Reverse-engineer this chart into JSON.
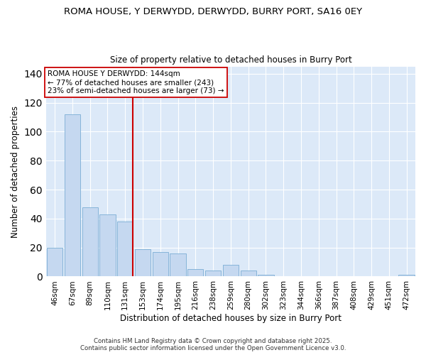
{
  "title_line1": "ROMA HOUSE, Y DERWYDD, DERWYDD, BURRY PORT, SA16 0EY",
  "title_line2": "Size of property relative to detached houses in Burry Port",
  "xlabel": "Distribution of detached houses by size in Burry Port",
  "ylabel": "Number of detached properties",
  "footer_line1": "Contains HM Land Registry data © Crown copyright and database right 2025.",
  "footer_line2": "Contains public sector information licensed under the Open Government Licence v3.0.",
  "categories": [
    "46sqm",
    "67sqm",
    "89sqm",
    "110sqm",
    "131sqm",
    "153sqm",
    "174sqm",
    "195sqm",
    "216sqm",
    "238sqm",
    "259sqm",
    "280sqm",
    "302sqm",
    "323sqm",
    "344sqm",
    "366sqm",
    "387sqm",
    "408sqm",
    "429sqm",
    "451sqm",
    "472sqm"
  ],
  "values": [
    20,
    112,
    48,
    43,
    38,
    19,
    17,
    16,
    5,
    4,
    8,
    4,
    1,
    0,
    0,
    0,
    0,
    0,
    0,
    0,
    1
  ],
  "bar_color": "#c5d8f0",
  "bar_edge_color": "#7aadd4",
  "highlight_index": 4,
  "highlight_color": "#cc0000",
  "annotation_text": "ROMA HOUSE Y DERWYDD: 144sqm\n← 77% of detached houses are smaller (243)\n23% of semi-detached houses are larger (73) →",
  "background_color": "#ffffff",
  "plot_bg_color": "#dce9f8",
  "grid_color": "#ffffff",
  "ylim": [
    0,
    145
  ],
  "yticks": [
    0,
    20,
    40,
    60,
    80,
    100,
    120,
    140
  ]
}
